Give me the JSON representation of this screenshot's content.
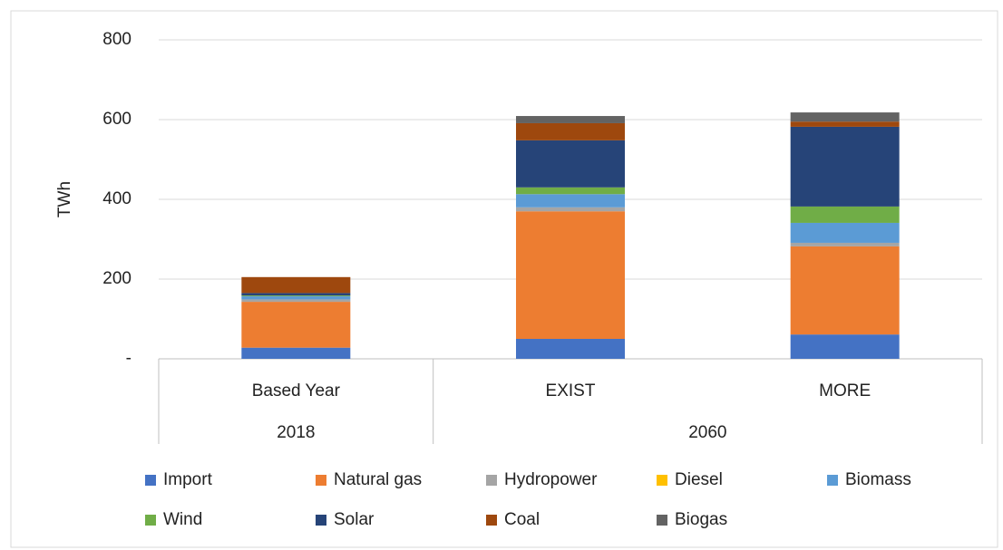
{
  "chart_data": {
    "type": "stacked_bar",
    "y_label": "TWh",
    "groups": [
      {
        "name": "2018",
        "categories": [
          "Based Year"
        ]
      },
      {
        "name": "2060",
        "categories": [
          "EXIST",
          "MORE"
        ]
      }
    ],
    "ylim": [
      0,
      800
    ],
    "yticks": [
      {
        "value": 0,
        "label": "-"
      },
      200,
      400,
      600,
      800
    ],
    "grid": true,
    "legend": "bottom",
    "series": [
      {
        "name": "Import",
        "color": "#4472c4",
        "values": [
          28,
          50,
          61
        ]
      },
      {
        "name": "Natural gas",
        "color": "#ed7d31",
        "values": [
          115,
          320,
          221
        ]
      },
      {
        "name": "Hydropower",
        "color": "#a5a5a5",
        "values": [
          6,
          10,
          9
        ]
      },
      {
        "name": "Diesel",
        "color": "#ffc000",
        "values": [
          0,
          0,
          0
        ]
      },
      {
        "name": "Biomass",
        "color": "#5b9bd5",
        "values": [
          8,
          33,
          50
        ]
      },
      {
        "name": "Wind",
        "color": "#70ad47",
        "values": [
          2,
          17,
          41
        ]
      },
      {
        "name": "Solar",
        "color": "#264478",
        "values": [
          6,
          118,
          200
        ]
      },
      {
        "name": "Coal",
        "color": "#9e480e",
        "values": [
          40,
          43,
          13
        ]
      },
      {
        "name": "Biogas",
        "color": "#636363",
        "values": [
          0,
          18,
          23
        ]
      }
    ]
  }
}
